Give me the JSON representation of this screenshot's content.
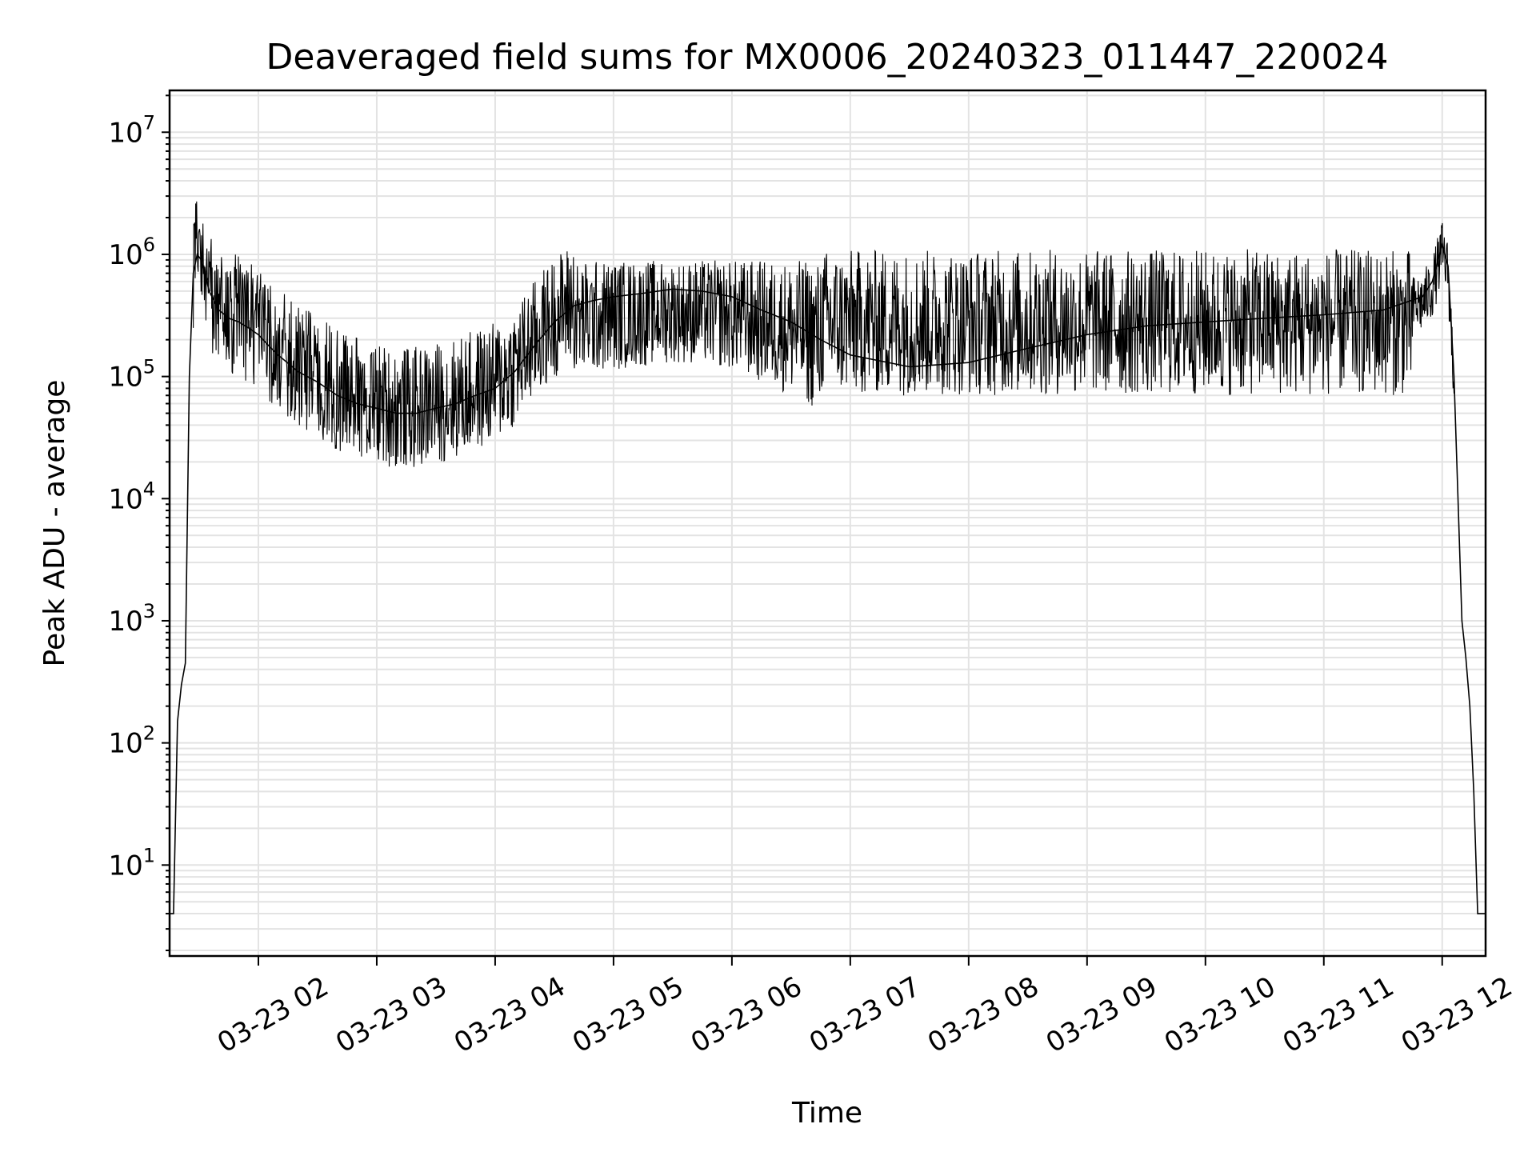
{
  "chart_data": {
    "type": "line",
    "title": "Deaveraged field sums for MX0006_20240323_011447_220024",
    "xlabel": "Time",
    "ylabel": "Peak ADU - average",
    "yscale": "log",
    "ylim": [
      1.8,
      22000000
    ],
    "xlim": [
      "03-23 01:15",
      "03-23 12:22"
    ],
    "grid": true,
    "line_color": "#000000",
    "x_ticks": [
      "03-23 02",
      "03-23 03",
      "03-23 04",
      "03-23 05",
      "03-23 06",
      "03-23 07",
      "03-23 08",
      "03-23 09",
      "03-23 10",
      "03-23 11",
      "03-23 12"
    ],
    "y_ticks": [
      {
        "base": "10",
        "exp": "1"
      },
      {
        "base": "10",
        "exp": "2"
      },
      {
        "base": "10",
        "exp": "3"
      },
      {
        "base": "10",
        "exp": "4"
      },
      {
        "base": "10",
        "exp": "5"
      },
      {
        "base": "10",
        "exp": "6"
      },
      {
        "base": "10",
        "exp": "7"
      }
    ],
    "series": [
      {
        "x": [
          "03-23 01:15",
          "03-23 01:17",
          "03-23 01:19",
          "03-23 01:21",
          "03-23 01:23",
          "03-23 01:25",
          "03-23 01:27",
          "03-23 01:29",
          "03-23 01:31",
          "03-23 01:33",
          "03-23 01:35",
          "03-23 01:40",
          "03-23 01:45",
          "03-23 01:50",
          "03-23 01:55",
          "03-23 02:00",
          "03-23 02:05",
          "03-23 02:10",
          "03-23 02:20",
          "03-23 02:30",
          "03-23 02:40",
          "03-23 02:50",
          "03-23 03:00",
          "03-23 03:10",
          "03-23 03:20",
          "03-23 03:30",
          "03-23 03:40",
          "03-23 03:50",
          "03-23 04:00",
          "03-23 04:10",
          "03-23 04:20",
          "03-23 04:30",
          "03-23 04:40",
          "03-23 04:50",
          "03-23 05:00",
          "03-23 05:15",
          "03-23 05:30",
          "03-23 05:45",
          "03-23 06:00",
          "03-23 06:15",
          "03-23 06:30",
          "03-23 06:45",
          "03-23 07:00",
          "03-23 07:30",
          "03-23 08:00",
          "03-23 08:30",
          "03-23 09:00",
          "03-23 09:30",
          "03-23 10:00",
          "03-23 10:30",
          "03-23 11:00",
          "03-23 11:30",
          "03-23 11:50",
          "03-23 11:55",
          "03-23 12:00",
          "03-23 12:03",
          "03-23 12:06",
          "03-23 12:08",
          "03-23 12:10",
          "03-23 12:12",
          "03-23 12:14",
          "03-23 12:16",
          "03-23 12:18",
          "03-23 12:20",
          "03-23 12:22"
        ],
        "y": [
          4,
          4,
          150,
          300,
          450,
          100000,
          700000,
          1000000,
          900000,
          700000,
          500000,
          350000,
          300000,
          280000,
          250000,
          220000,
          180000,
          150000,
          110000,
          90000,
          70000,
          60000,
          55000,
          50000,
          50000,
          55000,
          60000,
          70000,
          80000,
          110000,
          180000,
          280000,
          380000,
          420000,
          450000,
          480000,
          520000,
          500000,
          450000,
          350000,
          280000,
          200000,
          150000,
          120000,
          130000,
          170000,
          220000,
          260000,
          280000,
          300000,
          320000,
          350000,
          450000,
          600000,
          1200000,
          800000,
          100000,
          10000,
          1000,
          500,
          200,
          40,
          4,
          4,
          4
        ]
      }
    ]
  }
}
